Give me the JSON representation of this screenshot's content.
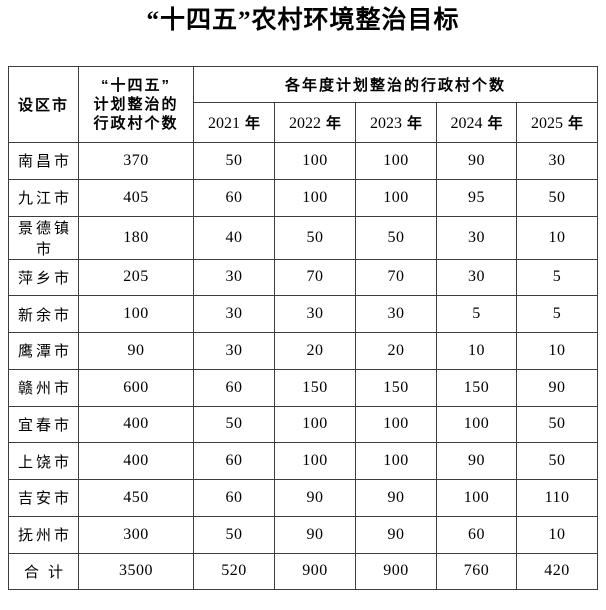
{
  "title": "“十四五”农村环境整治目标",
  "colors": {
    "text": "#000000",
    "border": "#3d3d3d",
    "background": "#ffffff"
  },
  "table": {
    "header": {
      "city": "设区市",
      "plan_lines": [
        "“十四五”",
        "计划整治的",
        "行政村个数"
      ],
      "years_group": "各年度计划整治的行政村个数",
      "years": [
        {
          "num": "2021",
          "unit": "年"
        },
        {
          "num": "2022",
          "unit": "年"
        },
        {
          "num": "2023",
          "unit": "年"
        },
        {
          "num": "2024",
          "unit": "年"
        },
        {
          "num": "2025",
          "unit": "年"
        }
      ]
    },
    "rows": [
      {
        "city": "南昌市",
        "cells": [
          "370",
          "50",
          "100",
          "100",
          "90",
          "30"
        ]
      },
      {
        "city": "九江市",
        "cells": [
          "405",
          "60",
          "100",
          "100",
          "95",
          "50"
        ]
      },
      {
        "city": "景德镇市",
        "cells": [
          "180",
          "40",
          "50",
          "50",
          "30",
          "10"
        ]
      },
      {
        "city": "萍乡市",
        "cells": [
          "205",
          "30",
          "70",
          "70",
          "30",
          "5"
        ]
      },
      {
        "city": "新余市",
        "cells": [
          "100",
          "30",
          "30",
          "30",
          "5",
          "5"
        ]
      },
      {
        "city": "鹰潭市",
        "cells": [
          "90",
          "30",
          "20",
          "20",
          "10",
          "10"
        ]
      },
      {
        "city": "赣州市",
        "cells": [
          "600",
          "60",
          "150",
          "150",
          "150",
          "90"
        ]
      },
      {
        "city": "宜春市",
        "cells": [
          "400",
          "50",
          "100",
          "100",
          "100",
          "50"
        ]
      },
      {
        "city": "上饶市",
        "cells": [
          "400",
          "60",
          "100",
          "100",
          "90",
          "50"
        ]
      },
      {
        "city": "吉安市",
        "cells": [
          "450",
          "60",
          "90",
          "90",
          "100",
          "110"
        ]
      },
      {
        "city": "抚州市",
        "cells": [
          "300",
          "50",
          "90",
          "90",
          "60",
          "10"
        ]
      },
      {
        "city": "合计",
        "cells": [
          "3500",
          "520",
          "900",
          "900",
          "760",
          "420"
        ]
      }
    ]
  }
}
